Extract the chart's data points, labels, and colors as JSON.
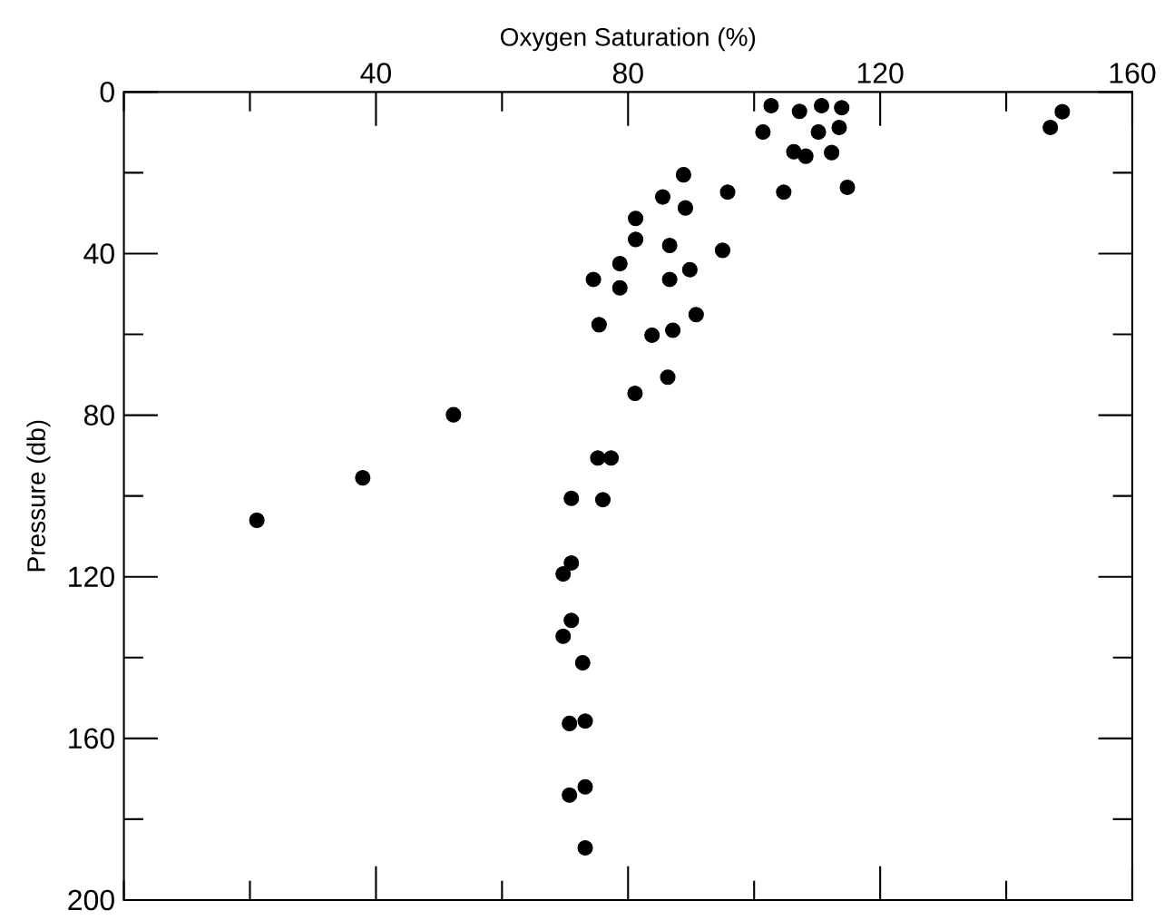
{
  "chart_data": {
    "type": "scatter",
    "xlabel": "Oxygen Saturation (%)",
    "ylabel": "Pressure (db)",
    "xlim": [
      0,
      160
    ],
    "ylim": [
      200,
      0
    ],
    "xticks": [
      {
        "value": 0,
        "label": null
      },
      {
        "value": 20,
        "label": null
      },
      40,
      {
        "value": 60,
        "label": null
      },
      80,
      {
        "value": 100,
        "label": null
      },
      120,
      {
        "value": 140,
        "label": null
      },
      160
    ],
    "yticks": [
      0,
      {
        "value": 20,
        "label": null
      },
      40,
      {
        "value": 60,
        "label": null
      },
      80,
      {
        "value": 100,
        "label": null
      },
      120,
      {
        "value": 140,
        "label": null
      },
      160,
      {
        "value": 180,
        "label": null
      },
      200
    ],
    "marker": "circle",
    "series": [
      {
        "color": "#000000",
        "x": [
          102.7,
          107.2,
          110.7,
          113.9,
          148.9,
          147.0,
          101.4,
          110.2,
          113.5,
          106.3,
          108.2,
          112.3,
          88.8,
          95.8,
          104.7,
          114.8,
          85.5,
          89.1,
          81.2,
          81.2,
          86.6,
          95.0,
          78.7,
          89.8,
          74.5,
          86.6,
          78.7,
          90.8,
          75.4,
          87.1,
          83.8,
          86.3,
          81.1,
          75.2,
          77.3,
          52.3,
          37.9,
          21.1,
          71.0,
          76.0,
          71.0,
          69.7,
          71.0,
          69.7,
          72.8,
          70.7,
          73.2,
          70.7,
          73.2,
          73.2
        ],
        "values": [
          3.4,
          4.8,
          3.4,
          3.9,
          4.9,
          8.8,
          9.9,
          9.9,
          8.8,
          14.8,
          15.9,
          15.0,
          20.5,
          24.8,
          24.8,
          23.6,
          26.0,
          28.7,
          31.3,
          36.5,
          38.0,
          39.2,
          42.5,
          44.0,
          46.4,
          46.4,
          48.5,
          55.1,
          57.6,
          59.0,
          60.2,
          70.6,
          74.6,
          90.6,
          90.6,
          79.9,
          95.5,
          106.0,
          100.6,
          100.9,
          116.6,
          119.3,
          130.8,
          134.7,
          141.3,
          156.3,
          155.7,
          174.0,
          172.0,
          187.1
        ]
      }
    ]
  }
}
